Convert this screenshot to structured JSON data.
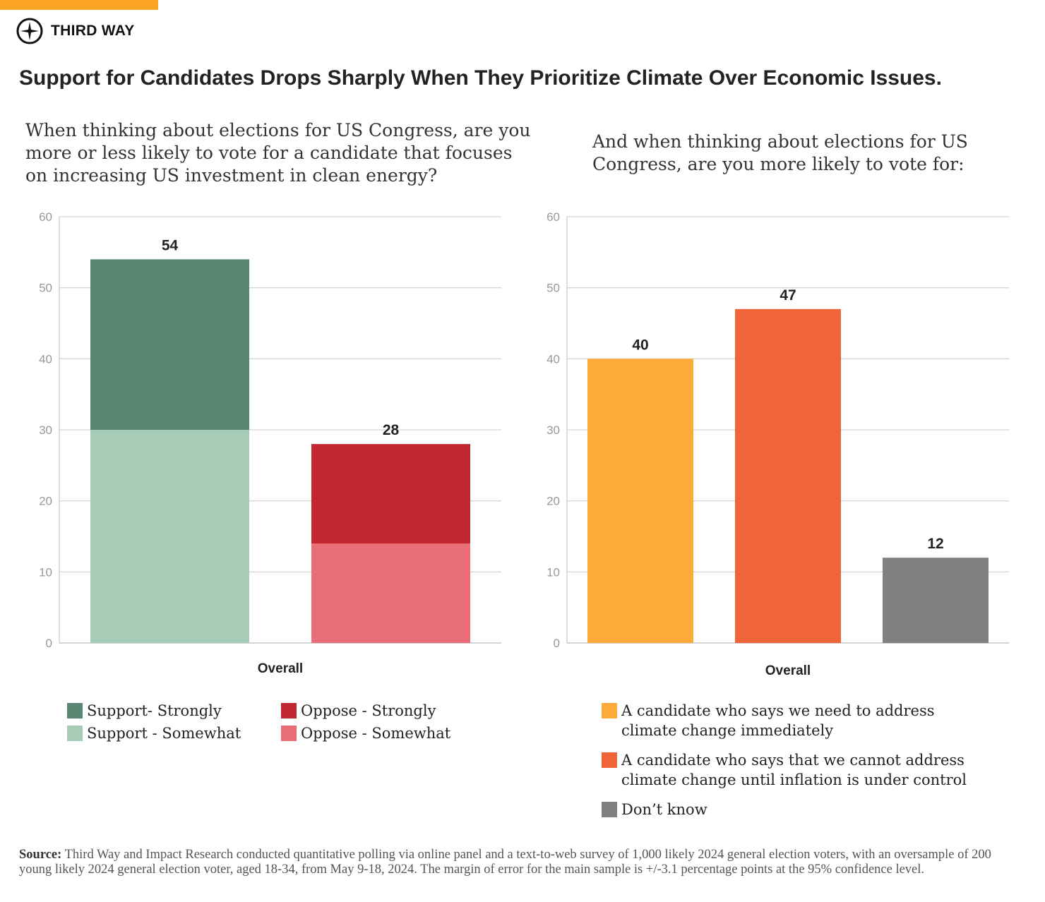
{
  "brand": {
    "name": "THIRD WAY",
    "accent": "#fca425"
  },
  "title": "Support for Candidates Drops Sharply When They Prioritize Climate Over Economic Issues.",
  "chart_data": [
    {
      "type": "bar",
      "stacked": true,
      "title": "When thinking about elections for US Congress, are you more or less likely to vote for a candidate that focuses on increasing US investment in clean energy?",
      "xlabel": "Overall",
      "ylim": [
        0,
        60
      ],
      "yticks": [
        0,
        10,
        20,
        30,
        40,
        50,
        60
      ],
      "grid": true,
      "legend": "bottom",
      "bars": [
        {
          "total_label": "54",
          "segments": [
            {
              "series": "Support - Somewhat",
              "value": 30
            },
            {
              "series": "Support- Strongly",
              "value": 24
            }
          ]
        },
        {
          "total_label": "28",
          "segments": [
            {
              "series": "Oppose - Somewhat",
              "value": 14
            },
            {
              "series": "Oppose - Strongly",
              "value": 14
            }
          ]
        }
      ],
      "series": [
        {
          "name": "Support- Strongly",
          "color": "#5a8773"
        },
        {
          "name": "Oppose - Strongly",
          "color": "#c1272f"
        },
        {
          "name": "Support - Somewhat",
          "color": "#a6cbb6"
        },
        {
          "name": "Oppose - Somewhat",
          "color": "#e96e78"
        }
      ]
    },
    {
      "type": "bar",
      "title": "And when thinking about elections for US Congress, are you more likely to vote for:",
      "xlabel": "Overall",
      "ylim": [
        0,
        60
      ],
      "yticks": [
        0,
        10,
        20,
        30,
        40,
        50,
        60
      ],
      "grid": true,
      "legend": "bottom",
      "series": [
        {
          "name": "A candidate who says we need to address climate change immediately",
          "value": 40,
          "label": "40",
          "color": "#fcab3a"
        },
        {
          "name": "A candidate who says that we cannot address climate change until inflation is under control",
          "value": 47,
          "label": "47",
          "color": "#f0643a"
        },
        {
          "name": "Don’t know",
          "value": 12,
          "label": "12",
          "color": "#808080"
        }
      ]
    }
  ],
  "source": {
    "label": "Source:",
    "text": "Third Way and Impact Research conducted quantitative polling via online panel and a text-to-web survey of 1,000 likely 2024 general election voters, with an oversample of 200 young likely 2024 general election voter, aged 18-34, from May 9-18, 2024. The margin of error for the main sample is +/-3.1 percentage points at the 95% confidence level."
  }
}
